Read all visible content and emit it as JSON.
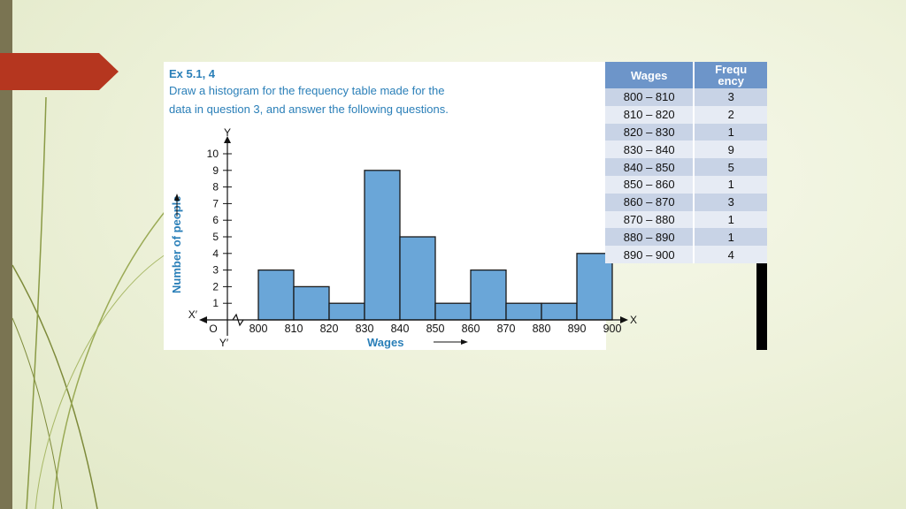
{
  "exercise": {
    "title": "Ex 5.1, 4",
    "line1": "Draw a histogram for the frequency table made for the",
    "line2": "data in question 3, and answer the following questions."
  },
  "table": {
    "headers": [
      "Wages",
      "Frequ ency"
    ],
    "rows": [
      [
        "800 – 810",
        "3"
      ],
      [
        "810 – 820",
        "2"
      ],
      [
        "820 – 830",
        "1"
      ],
      [
        "830 – 840",
        "9"
      ],
      [
        "840 – 850",
        "5"
      ],
      [
        "850 – 860",
        "1"
      ],
      [
        "860 – 870",
        "3"
      ],
      [
        "870 – 880",
        "1"
      ],
      [
        "880 – 890",
        "1"
      ],
      [
        "890 – 900",
        "4"
      ]
    ]
  },
  "colors": {
    "bar_fill": "#6aa6d8",
    "title_text": "#2a7fb8",
    "table_header": "#6d95c9",
    "accent_red": "#b5361f"
  },
  "chart_data": {
    "type": "bar",
    "categories": [
      "800-810",
      "810-820",
      "820-830",
      "830-840",
      "840-850",
      "850-860",
      "860-870",
      "870-880",
      "880-890",
      "890-900"
    ],
    "bin_edges": [
      800,
      810,
      820,
      830,
      840,
      850,
      860,
      870,
      880,
      890,
      900
    ],
    "values": [
      3,
      2,
      1,
      9,
      5,
      1,
      3,
      1,
      1,
      4
    ],
    "xlabel": "Wages",
    "ylabel": "Number of people",
    "ylim": [
      0,
      10
    ],
    "yticks": [
      1,
      2,
      3,
      4,
      5,
      6,
      7,
      8,
      9,
      10
    ],
    "axis_labels": {
      "x": "X",
      "x_neg": "X′",
      "y": "Y",
      "y_neg": "Y′",
      "origin": "O"
    },
    "grid": false
  }
}
